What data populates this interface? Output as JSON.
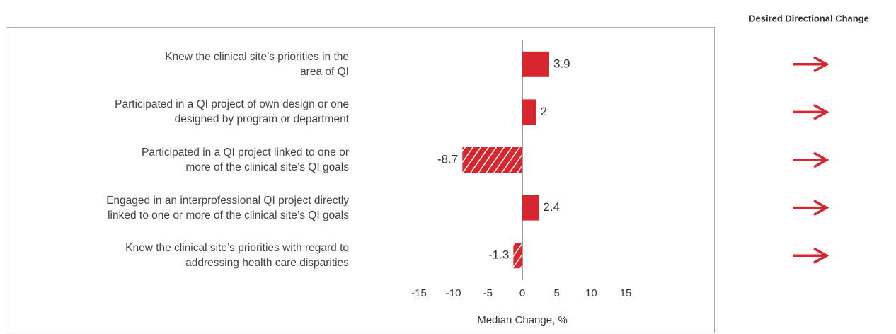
{
  "chart_data": {
    "type": "bar",
    "orientation": "horizontal",
    "side_header": "Desired Directional Change",
    "xlabel": "Median Change, %",
    "categories": [
      "Knew the clinical site’s priorities in the\narea of QI",
      "Participated in a QI project of own design or one\ndesigned by program or department",
      "Participated in a QI project linked to one or\nmore of the clinical site’s QI goals",
      "Engaged in an interprofessional QI project directly\nlinked to one or more of the clinical site’s QI goals",
      "Knew the clinical site’s priorities with regard to\naddressing health care disparities"
    ],
    "values": [
      3.9,
      2,
      -8.7,
      2.4,
      -1.3
    ],
    "color": "#d7262e",
    "xlim": [
      -15,
      15
    ],
    "xticks": [
      -15,
      -10,
      -5,
      0,
      5,
      10,
      15
    ]
  }
}
